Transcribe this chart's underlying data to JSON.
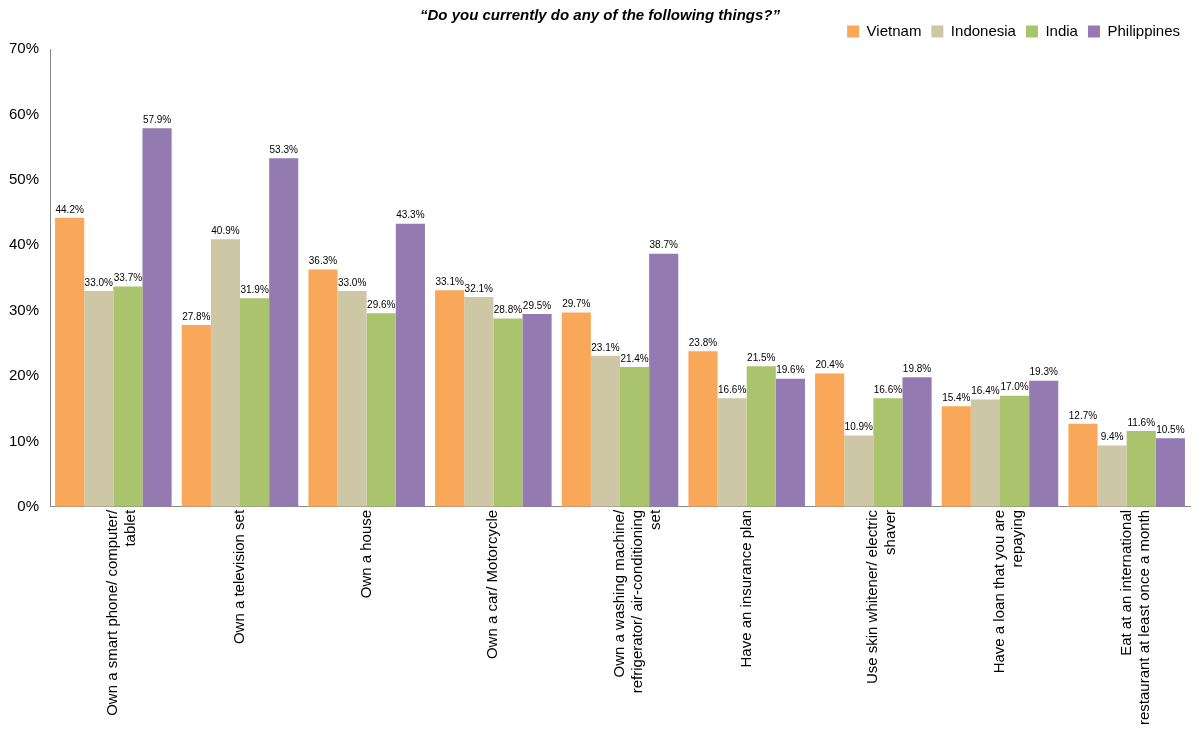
{
  "chart_data": {
    "type": "bar",
    "title": "“Do you currently do any of the following things?”",
    "categories": [
      "Own a smart phone/ computer/ tablet",
      "Own a television set",
      "Own a house",
      "Own a car/ Motorcycle",
      "Own a washing machine/ refrigerator/ air-conditioning set",
      "Have an insurance plan",
      "Use skin whitener/ electric shaver",
      "Have a loan that you are repaying",
      "Eat at an international restaurant at least once a month"
    ],
    "series": [
      {
        "name": "Vietnam",
        "color": "#f9a85a",
        "values": [
          44.2,
          27.8,
          36.3,
          33.1,
          29.7,
          23.8,
          20.4,
          15.4,
          12.7
        ],
        "value_labels": [
          "44.2%",
          "27.8%",
          "36.3%",
          "33.1%",
          "29.7%",
          "23.8%",
          "20.4%",
          "15.4%",
          "12.7%"
        ]
      },
      {
        "name": "Indonesia",
        "color": "#cdc7a5",
        "values": [
          33.0,
          40.9,
          33.0,
          32.1,
          23.1,
          16.6,
          10.9,
          16.4,
          9.4
        ],
        "value_labels": [
          "33.0%",
          "40.9%",
          "33.0%",
          "32.1%",
          "23.1%",
          "16.6%",
          "10.9%",
          "16.4%",
          "9.4%"
        ]
      },
      {
        "name": "India",
        "color": "#a9c46c",
        "values": [
          33.7,
          31.9,
          29.6,
          28.8,
          21.4,
          21.5,
          16.6,
          17.0,
          11.6
        ],
        "value_labels": [
          "33.7%",
          "31.9%",
          "29.6%",
          "28.8%",
          "21.4%",
          "21.5%",
          "16.6%",
          "17.0%",
          "11.6%"
        ]
      },
      {
        "name": "Philippines",
        "color": "#937ab1",
        "values": [
          57.9,
          53.3,
          43.3,
          29.5,
          38.7,
          19.6,
          19.8,
          19.3,
          10.5
        ],
        "value_labels": [
          "57.9%",
          "53.3%",
          "43.3%",
          "29.5%",
          "38.7%",
          "19.6%",
          "19.8%",
          "19.3%",
          "10.5%"
        ]
      }
    ],
    "ylim": [
      0,
      70
    ],
    "yticks": [
      {
        "value": 0,
        "label": "0%"
      },
      {
        "value": 10,
        "label": "10%"
      },
      {
        "value": 20,
        "label": "20%"
      },
      {
        "value": 30,
        "label": "30%"
      },
      {
        "value": 40,
        "label": "40%"
      },
      {
        "value": 50,
        "label": "50%"
      },
      {
        "value": 60,
        "label": "60%"
      },
      {
        "value": 70,
        "label": "70%"
      }
    ],
    "grid": false,
    "legend": "top right"
  }
}
